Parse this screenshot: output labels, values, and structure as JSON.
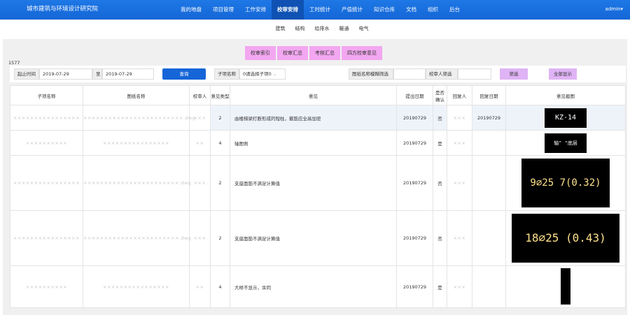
{
  "nav": {
    "brand": "城市建筑与环境设计研究院",
    "items": [
      "我的地盘",
      "项目管理",
      "工作安排",
      "校审安排",
      "工时统计",
      "产值统计",
      "知识仓库",
      "文档",
      "组织",
      "后台"
    ],
    "active": "校审安排",
    "user": "admin▾"
  },
  "subnav": [
    "建筑",
    "结构",
    "给排水",
    "暖通",
    "电气"
  ],
  "actions": [
    "校审索引",
    "校审汇总",
    "考核汇总",
    "四方校审意见"
  ],
  "count": "1577",
  "filter": {
    "start_label": "起止时间",
    "start": "2019-07-29",
    "to_label": "至",
    "end": "2019-07-29",
    "query": "查询",
    "sub_label": "子项名称",
    "sub_value": "0请选择子项0",
    "drawing_label": "图纸名称模糊筛选",
    "reviewer_label": "校审人筛选",
    "filter_btn": "筛选",
    "show_all": "全部显示"
  },
  "table": {
    "headers": [
      "子项名称",
      "图纸名称",
      "校审人",
      "意见类型",
      "意见",
      "提出日期",
      "是否确认",
      "回复人",
      "回复日期",
      "意见截图"
    ],
    "rows": [
      {
        "sub": "××××××××××××××××",
        "drawing": "××××××××××××××××××××××××.dwg",
        "reviewer": "×××",
        "type": "2",
        "opinion": "由楼梯梁打断形成的短柱，箍筋应全高加密",
        "date": "20190729",
        "confirmed": "否",
        "replier": "×××",
        "reply_date": "20190729",
        "shot": "KZ-14"
      },
      {
        "sub": "××××××××××",
        "drawing": "××××××××××××××××",
        "reviewer": "××",
        "type": "4",
        "opinion": "轴图例",
        "date": "20190729",
        "confirmed": "是",
        "replier": "×××",
        "reply_date": "",
        "shot": "轴\"  \"底层"
      },
      {
        "sub": "××××××××××××××××",
        "drawing": "×××××××××××××××××××××××.dwg",
        "reviewer": "×××",
        "type": "2",
        "opinion": "支座面筋不满足计算值",
        "date": "20190729",
        "confirmed": "否",
        "replier": "×××",
        "reply_date": "",
        "shot": "9⌀25 7(0.32)"
      },
      {
        "sub": "××××××××××××××××",
        "drawing": "×××××××××××××××××××××××.dwg",
        "reviewer": "×××",
        "type": "2",
        "opinion": "支座面筋不满足计算值",
        "date": "20190729",
        "confirmed": "否",
        "replier": "×××",
        "reply_date": "",
        "shot": "18⌀25 (0.43)"
      },
      {
        "sub": "××××××××××",
        "drawing": "××××××××××××××××",
        "reviewer": "××",
        "type": "4",
        "opinion": "大样不显示，余同",
        "date": "20190729",
        "confirmed": "是",
        "replier": "×××",
        "reply_date": "",
        "shot": ""
      }
    ]
  }
}
